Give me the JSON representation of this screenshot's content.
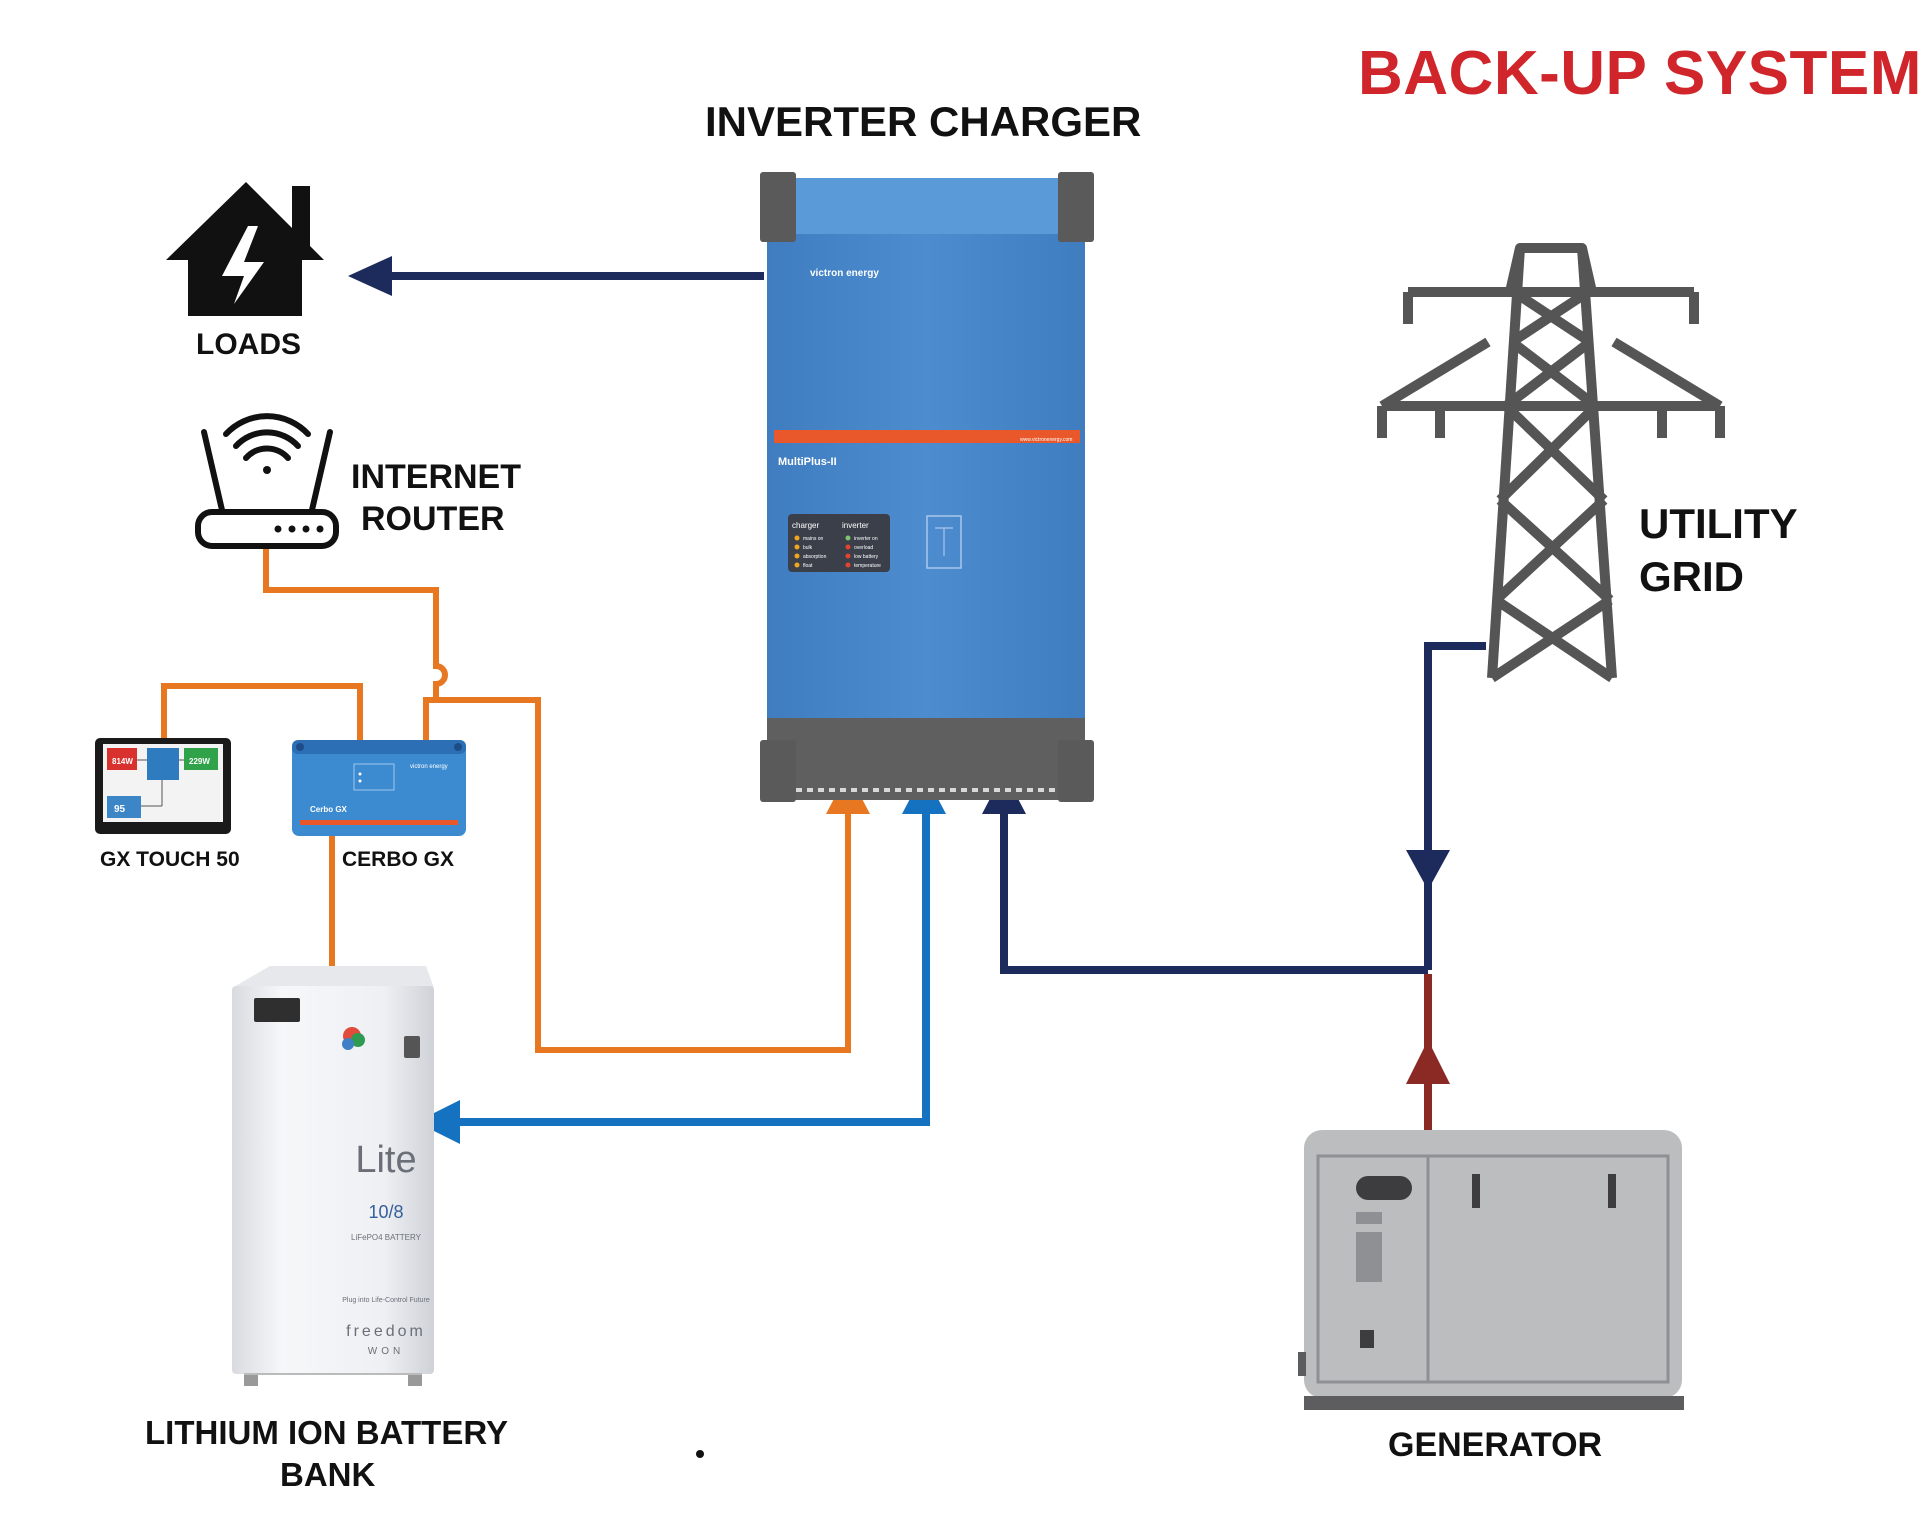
{
  "title": "BACK-UP SYSTEM",
  "labels": {
    "inverter_charger": "INVERTER CHARGER",
    "loads": "LOADS",
    "internet_router_line1": "INTERNET",
    "internet_router_line2": "ROUTER",
    "utility_grid_line1": "UTILITY",
    "utility_grid_line2": "GRID",
    "gx_touch": "GX TOUCH 50",
    "cerbo_gx": "CERBO GX",
    "battery_line1": "LITHIUM ION BATTERY",
    "battery_line2": "BANK",
    "generator": "GENERATOR"
  },
  "inverter_panel": {
    "brand": "victron energy",
    "model": "MultiPlus-II",
    "website": "www.victronenergy.com",
    "charger_header": "charger",
    "inverter_header": "inverter",
    "charger_items": [
      "mains on",
      "bulk",
      "absorption",
      "float"
    ],
    "inverter_items": [
      "inverter on",
      "overload",
      "low battery",
      "temperature"
    ]
  },
  "cerbo_panel": {
    "name": "Cerbo GX",
    "brand": "victron energy"
  },
  "gx_touch_screen": {
    "tile_left": "814W",
    "tile_right": "229W",
    "battery_pct": "95"
  },
  "battery_panel": {
    "brand": "Lite",
    "model": "10/8",
    "chemistry": "LiFePO4 BATTERY",
    "tagline": "Plug into Life-Control Future",
    "maker": "freedom",
    "maker_sub": "WON"
  },
  "colors": {
    "title_red": "#d0252b",
    "dc_blue": "#1472c0",
    "ac_navy": "#1c2a5c",
    "comm_orange": "#e87722",
    "generator_red": "#8b2a24",
    "inverter_blue": "#4a86c7"
  },
  "icons": [
    "house-lightning-icon",
    "wifi-router-icon",
    "transmission-tower-icon",
    "generator-icon",
    "battery-cabinet-icon",
    "gx-touch-icon",
    "cerbo-gx-icon",
    "inverter-icon"
  ]
}
